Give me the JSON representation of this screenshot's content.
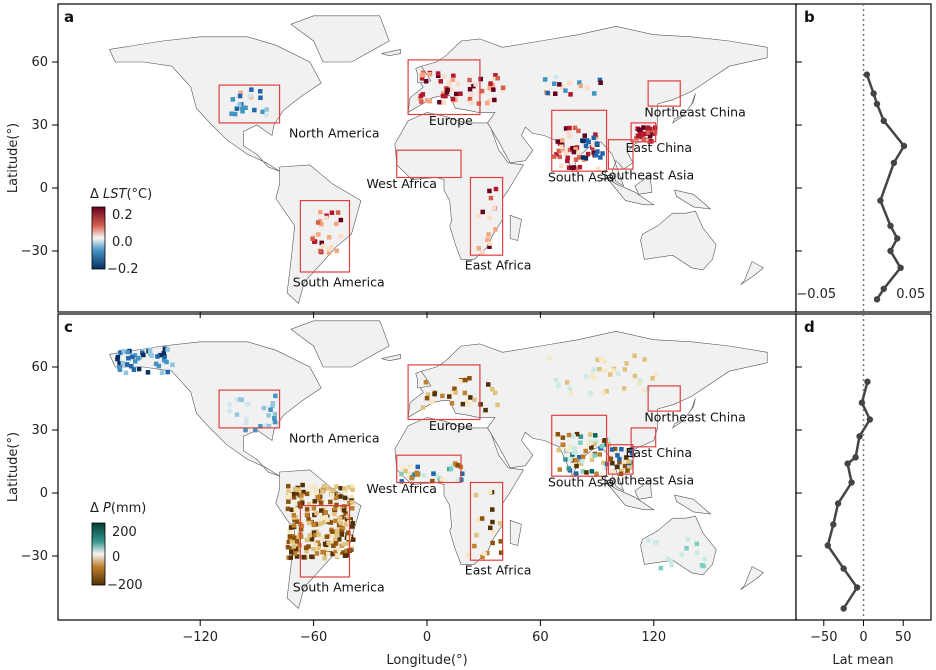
{
  "panels": {
    "a": "a",
    "b": "b",
    "c": "c",
    "d": "d"
  },
  "axes": {
    "ylabel": "Latitude(°)",
    "xlabel": "Longitude(°)",
    "lat_ticks": [
      "60",
      "30",
      "0",
      "−30"
    ],
    "lon_ticks": [
      "−120",
      "−60",
      "0",
      "60",
      "120"
    ],
    "b_ticks": [
      "−0.05",
      "0.05"
    ],
    "d_ticks": [
      "−50",
      "0",
      "50"
    ],
    "d_xlabel": "Lat mean"
  },
  "colorbars": {
    "lst": {
      "title_prefix": "Δ ",
      "title_var": "LST",
      "title_unit": "(°C)",
      "ticks": [
        "0.2",
        "0.0",
        "−0.2"
      ],
      "colors": [
        "#67001f",
        "#d6604d",
        "#f7f7f7",
        "#4393c3",
        "#053061"
      ]
    },
    "p": {
      "title_prefix": "Δ ",
      "title_var": "P",
      "title_unit": "(mm)",
      "ticks": [
        "200",
        "0",
        "−200"
      ],
      "colors": [
        "#003c30",
        "#35978f",
        "#f5f5f5",
        "#bf812d",
        "#543005"
      ]
    }
  },
  "regions": [
    {
      "name": "North America",
      "lon": [
        -110,
        -78
      ],
      "lat": [
        31,
        49
      ]
    },
    {
      "name": "Europe",
      "lon": [
        -10,
        28
      ],
      "lat": [
        35,
        61
      ]
    },
    {
      "name": "West Africa",
      "lon": [
        -16,
        18
      ],
      "lat": [
        5,
        18
      ]
    },
    {
      "name": "East Africa",
      "lon": [
        23,
        40
      ],
      "lat": [
        -32,
        5
      ]
    },
    {
      "name": "South Asia",
      "lon": [
        66,
        95
      ],
      "lat": [
        8,
        37
      ]
    },
    {
      "name": "Southeast Asia",
      "lon": [
        96,
        109
      ],
      "lat": [
        9,
        23
      ]
    },
    {
      "name": "East China",
      "lon": [
        108,
        121
      ],
      "lat": [
        22,
        31
      ]
    },
    {
      "name": "Northeast China",
      "lon": [
        117,
        134
      ],
      "lat": [
        39,
        51
      ]
    },
    {
      "name": "South America",
      "lon": [
        -67,
        -41
      ],
      "lat": [
        -40,
        -6
      ]
    }
  ],
  "chart_data": [
    {
      "type": "line",
      "panel": "b",
      "xlabel": "",
      "xlim": [
        -0.1,
        0.1
      ],
      "reference_line": 0,
      "points": [
        {
          "x": 0.005,
          "y": 54
        },
        {
          "x": 0.015,
          "y": 45
        },
        {
          "x": 0.02,
          "y": 40
        },
        {
          "x": 0.03,
          "y": 32
        },
        {
          "x": 0.06,
          "y": 20
        },
        {
          "x": 0.045,
          "y": 12
        },
        {
          "x": 0.025,
          "y": -6
        },
        {
          "x": 0.04,
          "y": -18
        },
        {
          "x": 0.05,
          "y": -24
        },
        {
          "x": 0.04,
          "y": -30
        },
        {
          "x": 0.055,
          "y": -38
        },
        {
          "x": 0.03,
          "y": -48
        },
        {
          "x": 0.02,
          "y": -53
        }
      ]
    },
    {
      "type": "line",
      "panel": "d",
      "xlabel": "Lat mean",
      "xlim": [
        -85,
        85
      ],
      "reference_line": 0,
      "points": [
        {
          "x": 5,
          "y": 53
        },
        {
          "x": -2,
          "y": 43
        },
        {
          "x": 8,
          "y": 35
        },
        {
          "x": -5,
          "y": 27
        },
        {
          "x": -10,
          "y": 17
        },
        {
          "x": -20,
          "y": 14
        },
        {
          "x": -15,
          "y": 5
        },
        {
          "x": -32,
          "y": -5
        },
        {
          "x": -38,
          "y": -15
        },
        {
          "x": -45,
          "y": -25
        },
        {
          "x": -25,
          "y": -36
        },
        {
          "x": -8,
          "y": -45
        },
        {
          "x": -25,
          "y": -55
        }
      ]
    }
  ]
}
